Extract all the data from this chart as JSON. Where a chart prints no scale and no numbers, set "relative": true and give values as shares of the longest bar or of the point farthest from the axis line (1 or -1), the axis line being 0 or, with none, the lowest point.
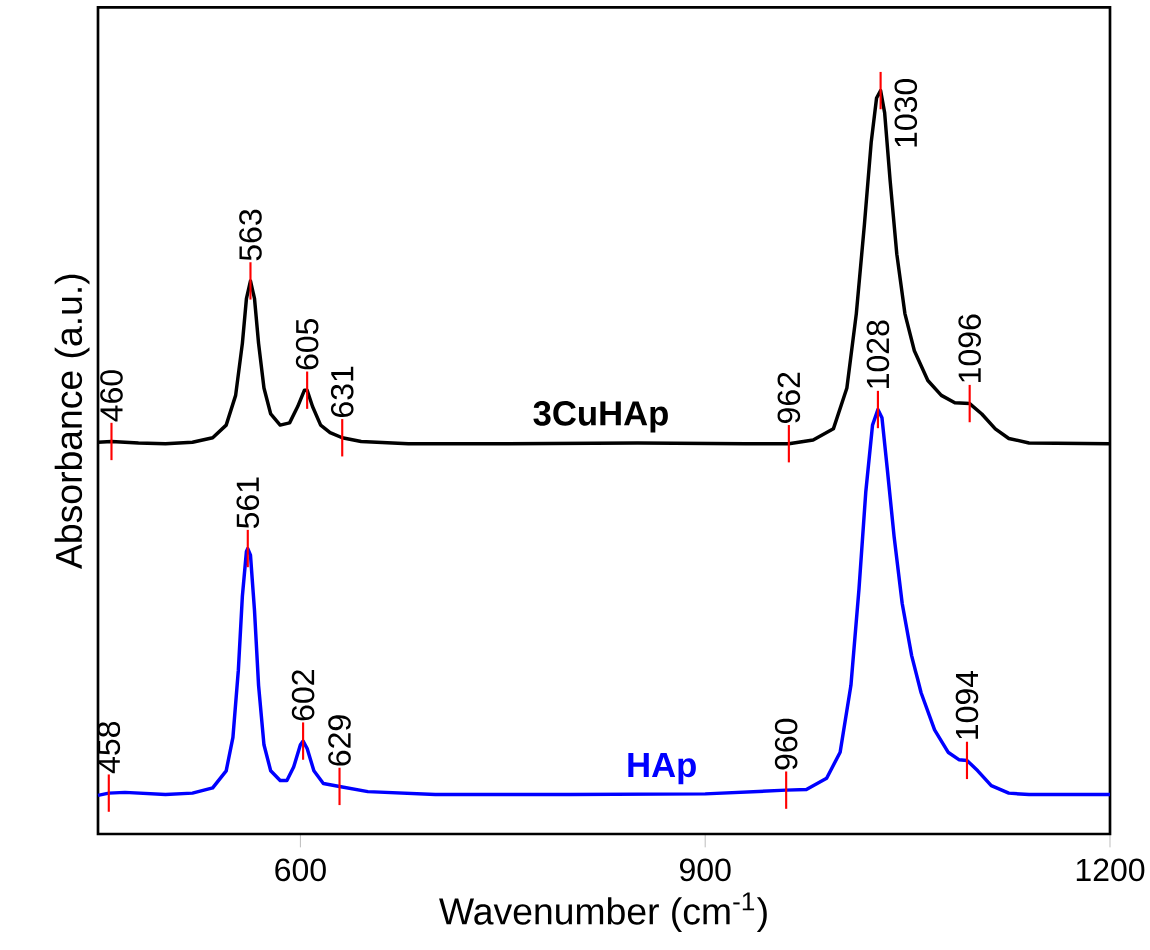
{
  "chart_data": {
    "type": "line",
    "relative": true,
    "xlabel": "Wavenumber (cm$^{-1}$)",
    "ylabel": "Absorbance (a.u.)",
    "xlim": [
      450,
      1200
    ],
    "xticks": [
      600,
      900,
      1200
    ],
    "grid": false,
    "marker": "none",
    "line_style": "solid",
    "series": [
      {
        "name": "3CuHAp",
        "color": "#000000",
        "x": [
          450,
          460,
          480,
          500,
          520,
          535,
          545,
          552,
          557,
          560,
          563,
          566,
          569,
          573,
          578,
          585,
          592,
          598,
          603,
          605,
          609,
          615,
          622,
          631,
          645,
          680,
          750,
          850,
          930,
          962,
          980,
          995,
          1005,
          1012,
          1018,
          1023,
          1027,
          1030,
          1033,
          1037,
          1042,
          1048,
          1055,
          1065,
          1075,
          1085,
          1096,
          1105,
          1115,
          1125,
          1140,
          1200
        ],
        "values": [
          0.527,
          0.528,
          0.526,
          0.525,
          0.527,
          0.533,
          0.55,
          0.59,
          0.66,
          0.72,
          0.744,
          0.72,
          0.66,
          0.6,
          0.565,
          0.55,
          0.553,
          0.575,
          0.597,
          0.597,
          0.575,
          0.55,
          0.54,
          0.533,
          0.528,
          0.525,
          0.525,
          0.526,
          0.525,
          0.525,
          0.53,
          0.545,
          0.6,
          0.7,
          0.82,
          0.93,
          0.99,
          1.0,
          0.97,
          0.88,
          0.78,
          0.7,
          0.65,
          0.61,
          0.59,
          0.58,
          0.579,
          0.565,
          0.545,
          0.532,
          0.526,
          0.525
        ]
      },
      {
        "name": "HAp",
        "color": "#0000ff",
        "x": [
          450,
          458,
          470,
          500,
          520,
          535,
          545,
          550,
          554,
          557,
          560,
          561,
          563,
          566,
          569,
          573,
          578,
          585,
          590,
          595,
          600,
          602,
          605,
          610,
          617,
          629,
          650,
          700,
          800,
          900,
          960,
          975,
          990,
          1000,
          1008,
          1014,
          1019,
          1024,
          1028,
          1031,
          1035,
          1040,
          1046,
          1053,
          1060,
          1070,
          1080,
          1088,
          1094,
          1102,
          1112,
          1125,
          1140,
          1200
        ],
        "values": [
          0.052,
          0.055,
          0.056,
          0.053,
          0.055,
          0.062,
          0.085,
          0.13,
          0.22,
          0.32,
          0.38,
          0.384,
          0.375,
          0.3,
          0.2,
          0.12,
          0.085,
          0.072,
          0.072,
          0.09,
          0.12,
          0.125,
          0.115,
          0.085,
          0.068,
          0.064,
          0.057,
          0.053,
          0.053,
          0.054,
          0.059,
          0.06,
          0.075,
          0.11,
          0.2,
          0.33,
          0.46,
          0.55,
          0.571,
          0.56,
          0.49,
          0.4,
          0.31,
          0.24,
          0.19,
          0.14,
          0.11,
          0.1,
          0.099,
          0.085,
          0.065,
          0.055,
          0.053,
          0.053
        ]
      }
    ],
    "annotations": [
      {
        "text": "460",
        "x": 460,
        "y": 0.528
      },
      {
        "text": "563",
        "x": 563,
        "y": 0.744
      },
      {
        "text": "605",
        "x": 605,
        "y": 0.597
      },
      {
        "text": "631",
        "x": 631,
        "y": 0.533
      },
      {
        "text": "962",
        "x": 962,
        "y": 0.525
      },
      {
        "text": "1030",
        "x": 1030,
        "y": 1.0
      },
      {
        "text": "1096",
        "x": 1096,
        "y": 0.579
      },
      {
        "text": "458",
        "x": 458,
        "y": 0.055
      },
      {
        "text": "561",
        "x": 561,
        "y": 0.384
      },
      {
        "text": "602",
        "x": 602,
        "y": 0.125
      },
      {
        "text": "629",
        "x": 629,
        "y": 0.064
      },
      {
        "text": "960",
        "x": 960,
        "y": 0.059
      },
      {
        "text": "1028",
        "x": 1028,
        "y": 0.571
      },
      {
        "text": "1094",
        "x": 1094,
        "y": 0.099
      }
    ]
  }
}
